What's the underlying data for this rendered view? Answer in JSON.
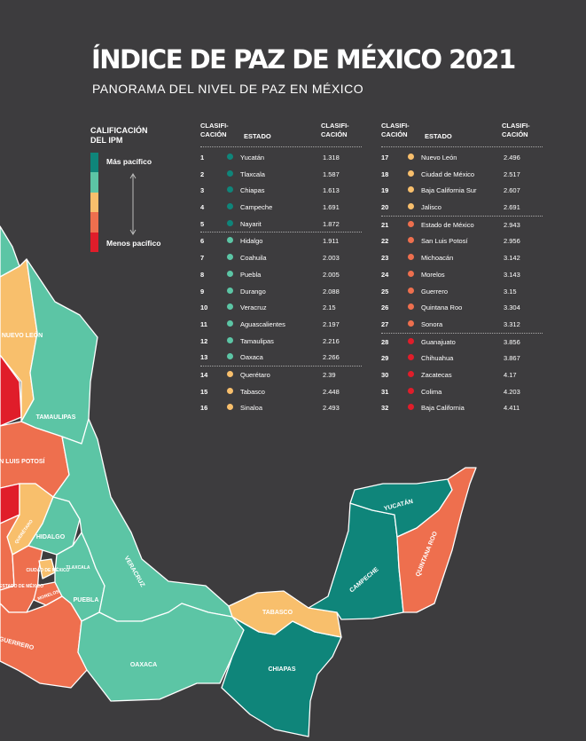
{
  "header": {
    "title": "ÍNDICE DE PAZ DE MÉXICO 2021",
    "subtitle": "PANORAMA DEL NIVEL DE PAZ EN MÉXICO"
  },
  "legend": {
    "title": "CALIFICACIÓN DEL IPM",
    "top_label": "Más pacífico",
    "bottom_label": "Menos pacífico",
    "colors": [
      "#0f857a",
      "#5cc5a5",
      "#f8bf6c",
      "#ee6f4e",
      "#e01d2a"
    ]
  },
  "table": {
    "rank_header": "CLASIFI-CACIÓN",
    "state_header": "ESTADO",
    "score_header": "CLASIFI-CACIÓN",
    "rows": [
      {
        "rank": "1",
        "state": "Yucatán",
        "score": "1.318",
        "color": "#0f857a"
      },
      {
        "rank": "2",
        "state": "Tlaxcala",
        "score": "1.587",
        "color": "#0f857a"
      },
      {
        "rank": "3",
        "state": "Chiapas",
        "score": "1.613",
        "color": "#0f857a"
      },
      {
        "rank": "4",
        "state": "Campeche",
        "score": "1.691",
        "color": "#0f857a"
      },
      {
        "rank": "5",
        "state": "Nayarit",
        "score": "1.872",
        "color": "#0f857a"
      },
      {
        "rank": "6",
        "state": "Hidalgo",
        "score": "1.911",
        "color": "#5cc5a5"
      },
      {
        "rank": "7",
        "state": "Coahuila",
        "score": "2.003",
        "color": "#5cc5a5"
      },
      {
        "rank": "8",
        "state": "Puebla",
        "score": "2.005",
        "color": "#5cc5a5"
      },
      {
        "rank": "9",
        "state": "Durango",
        "score": "2.088",
        "color": "#5cc5a5"
      },
      {
        "rank": "10",
        "state": "Veracruz",
        "score": "2.15",
        "color": "#5cc5a5"
      },
      {
        "rank": "11",
        "state": "Aguascalientes",
        "score": "2.197",
        "color": "#5cc5a5"
      },
      {
        "rank": "12",
        "state": "Tamaulipas",
        "score": "2.216",
        "color": "#5cc5a5"
      },
      {
        "rank": "13",
        "state": "Oaxaca",
        "score": "2.266",
        "color": "#5cc5a5"
      },
      {
        "rank": "14",
        "state": "Querétaro",
        "score": "2.39",
        "color": "#f8bf6c"
      },
      {
        "rank": "15",
        "state": "Tabasco",
        "score": "2.448",
        "color": "#f8bf6c"
      },
      {
        "rank": "16",
        "state": "Sinaloa",
        "score": "2.493",
        "color": "#f8bf6c"
      },
      {
        "rank": "17",
        "state": "Nuevo León",
        "score": "2.496",
        "color": "#f8bf6c"
      },
      {
        "rank": "18",
        "state": "Ciudad de México",
        "score": "2.517",
        "color": "#f8bf6c"
      },
      {
        "rank": "19",
        "state": "Baja California Sur",
        "score": "2.607",
        "color": "#f8bf6c"
      },
      {
        "rank": "20",
        "state": "Jalisco",
        "score": "2.691",
        "color": "#f8bf6c"
      },
      {
        "rank": "21",
        "state": "Estado de México",
        "score": "2.943",
        "color": "#ee6f4e"
      },
      {
        "rank": "22",
        "state": "San Luis Potosí",
        "score": "2.956",
        "color": "#ee6f4e"
      },
      {
        "rank": "23",
        "state": "Michoacán",
        "score": "3.142",
        "color": "#ee6f4e"
      },
      {
        "rank": "24",
        "state": "Morelos",
        "score": "3.143",
        "color": "#ee6f4e"
      },
      {
        "rank": "25",
        "state": "Guerrero",
        "score": "3.15",
        "color": "#ee6f4e"
      },
      {
        "rank": "26",
        "state": "Quintana Roo",
        "score": "3.304",
        "color": "#ee6f4e"
      },
      {
        "rank": "27",
        "state": "Sonora",
        "score": "3.312",
        "color": "#ee6f4e"
      },
      {
        "rank": "28",
        "state": "Guanajuato",
        "score": "3.856",
        "color": "#e01d2a"
      },
      {
        "rank": "29",
        "state": "Chihuahua",
        "score": "3.867",
        "color": "#e01d2a"
      },
      {
        "rank": "30",
        "state": "Zacatecas",
        "score": "4.17",
        "color": "#e01d2a"
      },
      {
        "rank": "31",
        "state": "Colima",
        "score": "4.203",
        "color": "#e01d2a"
      },
      {
        "rank": "32",
        "state": "Baja California",
        "score": "4.411",
        "color": "#e01d2a"
      }
    ]
  },
  "map": {
    "labels": {
      "nuevo_leon": "NUEVO LEÓN",
      "tamaulipas": "TAMAULIPAS",
      "san_luis_potosi": "SAN LUIS POTOSÍ",
      "queretaro": "QUERÉTARO",
      "hidalgo": "HIDALGO",
      "ciudad_de_mexico": "CIUDAD DE MÉXICO",
      "tlaxcala": "TLAXCALA",
      "estado_de_mexico": "ESTADO DE MÉXICO",
      "morelos": "MORELOS",
      "puebla": "PUEBLA",
      "veracruz": "VERACRUZ",
      "guerrero": "GUERRERO",
      "oaxaca": "OAXACA",
      "tabasco": "TABASCO",
      "chiapas": "CHIAPAS",
      "campeche": "CAMPECHE",
      "yucatan": "YUCATÁN",
      "quintana_roo": "QUINTANA ROO"
    }
  }
}
